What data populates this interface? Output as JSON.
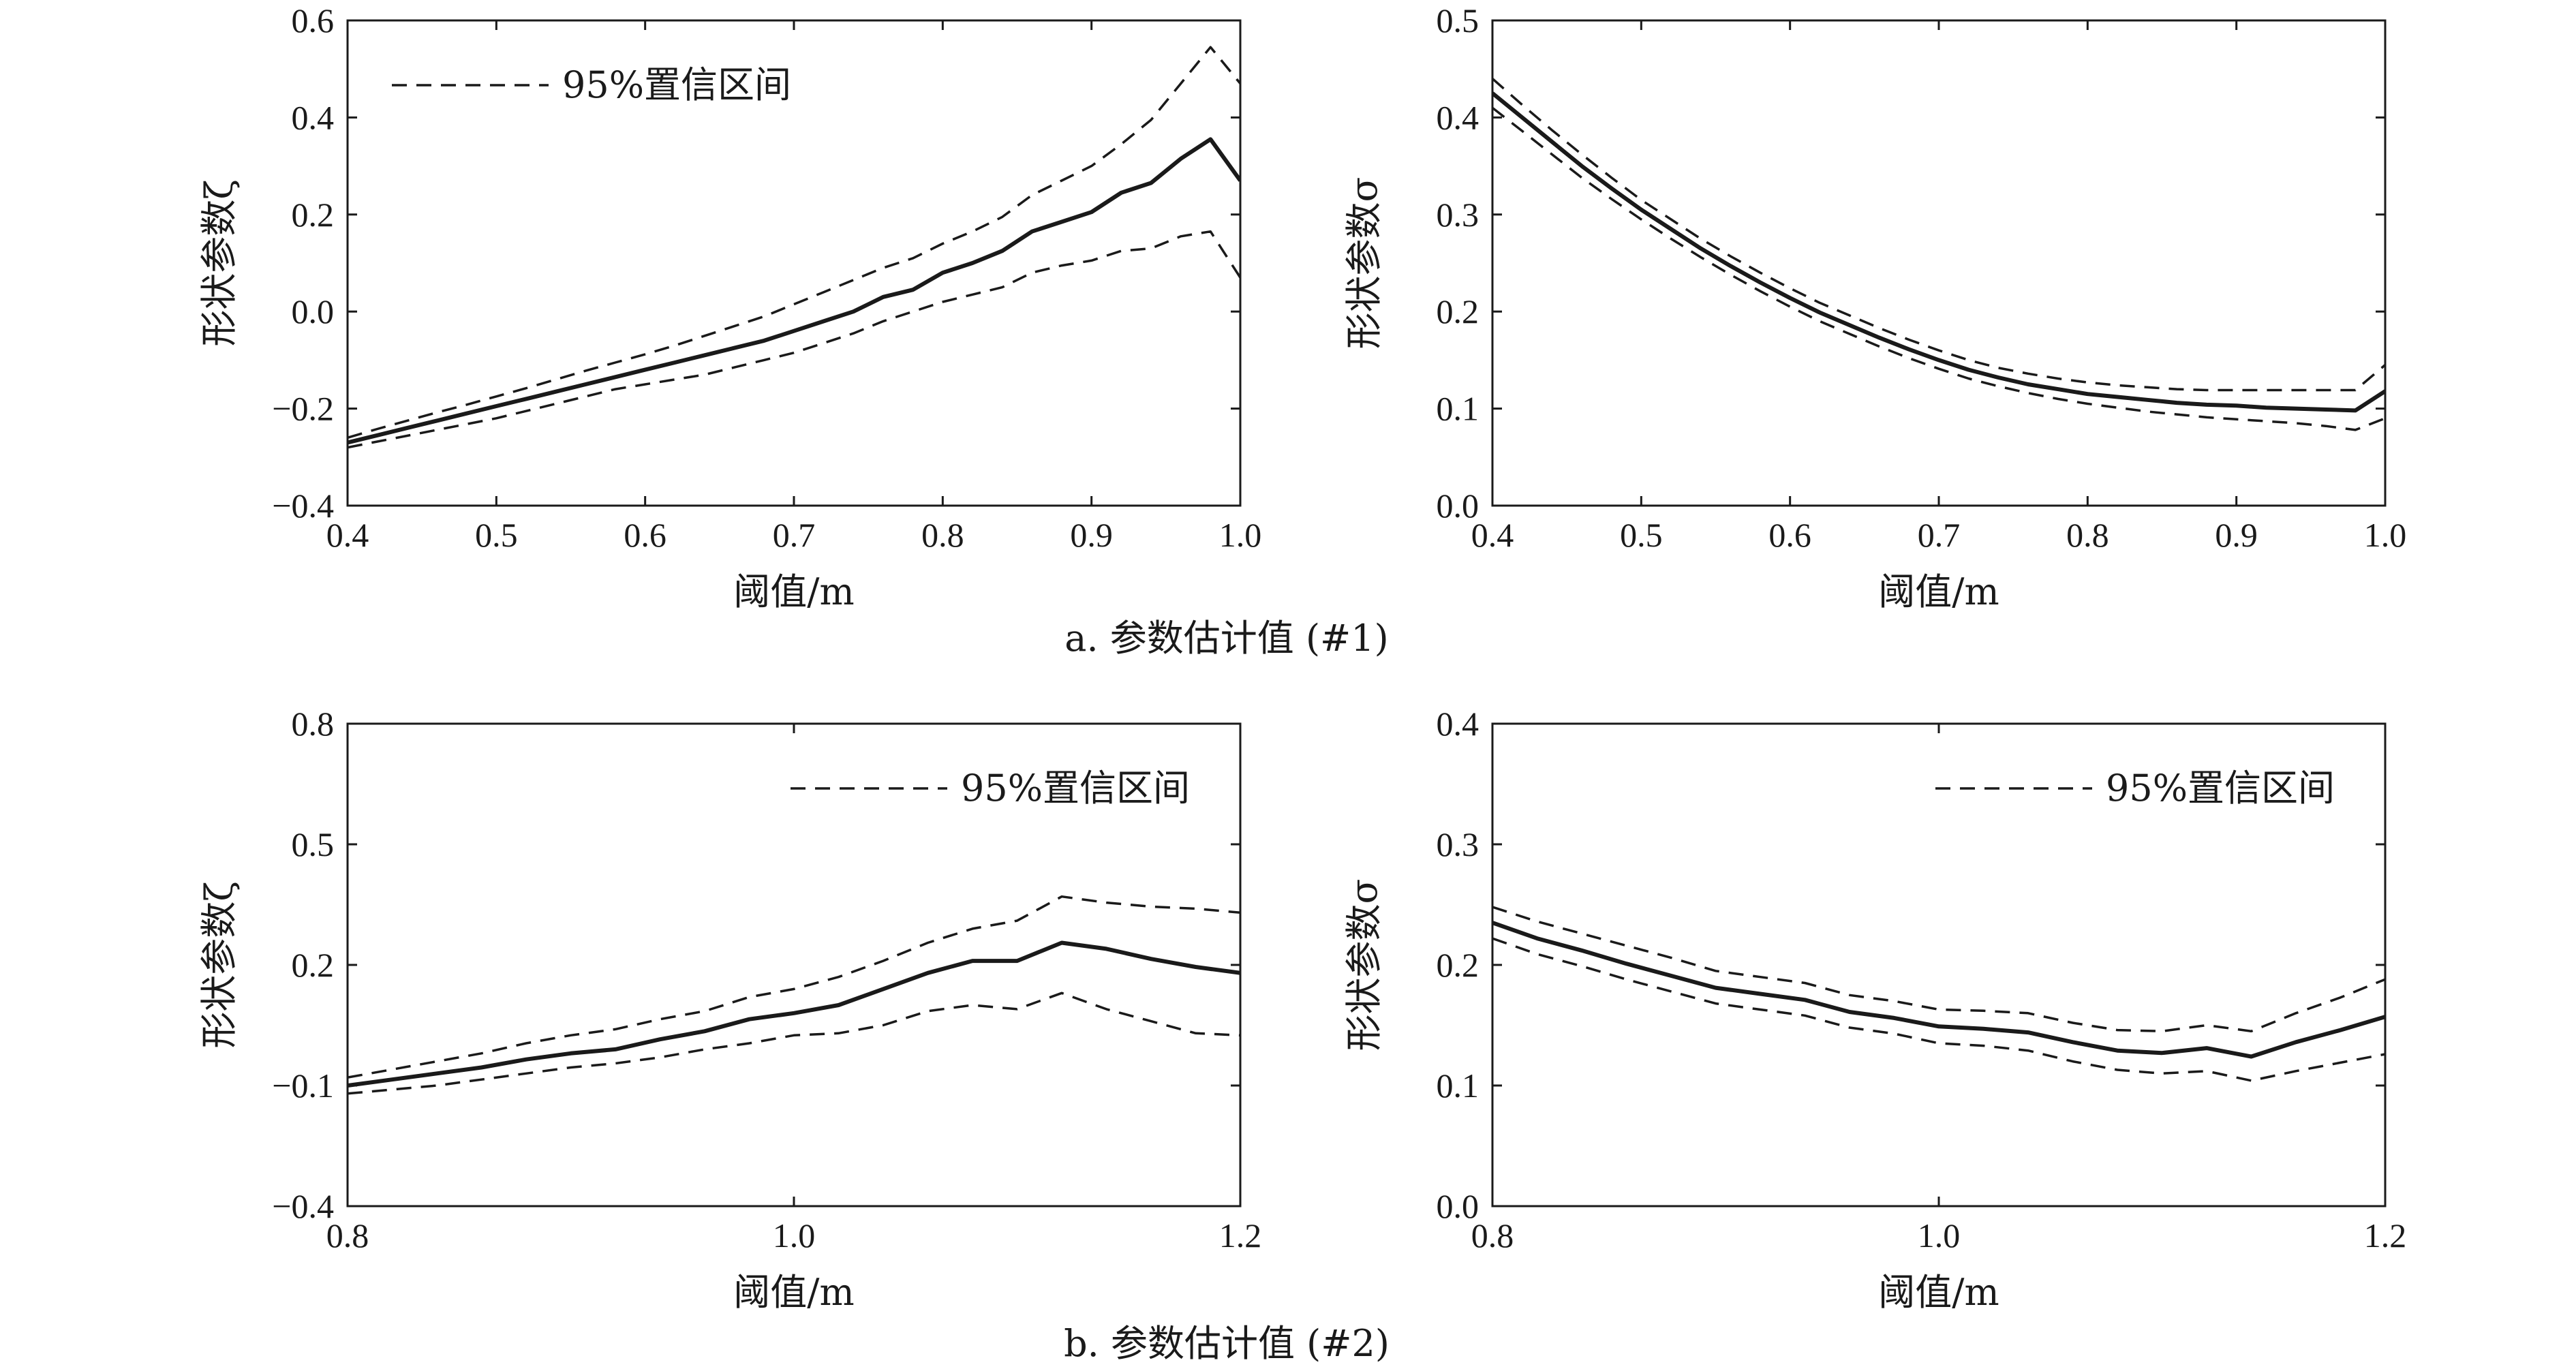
{
  "captions": {
    "row_a": "a. 参数估计值 (#1)",
    "row_b": "b. 参数估计值 (#2)"
  },
  "chart_data": [
    {
      "id": "a-left",
      "type": "line",
      "xlabel": "阈值/m",
      "ylabel": "形状参数ζ",
      "xlim": [
        0.4,
        1.0
      ],
      "ylim": [
        -0.4,
        0.6
      ],
      "xticks": [
        0.4,
        0.5,
        0.6,
        0.7,
        0.8,
        0.9,
        1.0
      ],
      "xtick_labels": [
        "0.4",
        "0.5",
        "0.6",
        "0.7",
        "0.8",
        "0.9",
        "1.0"
      ],
      "yticks": [
        -0.4,
        -0.2,
        0.0,
        0.2,
        0.4,
        0.6
      ],
      "ytick_labels": [
        "−0.4",
        "−0.2",
        "0.0",
        "0.2",
        "0.4",
        "0.6"
      ],
      "legend": {
        "label": "95%置信区间",
        "position": "top-left"
      },
      "x": [
        0.4,
        0.42,
        0.44,
        0.46,
        0.48,
        0.5,
        0.52,
        0.54,
        0.56,
        0.58,
        0.6,
        0.62,
        0.64,
        0.66,
        0.68,
        0.7,
        0.72,
        0.74,
        0.76,
        0.78,
        0.8,
        0.82,
        0.84,
        0.86,
        0.88,
        0.9,
        0.92,
        0.94,
        0.96,
        0.98,
        1.0
      ],
      "series": [
        {
          "role": "estimate",
          "style": "solid",
          "values": [
            -0.27,
            -0.255,
            -0.24,
            -0.225,
            -0.21,
            -0.195,
            -0.18,
            -0.165,
            -0.15,
            -0.135,
            -0.12,
            -0.105,
            -0.09,
            -0.075,
            -0.06,
            -0.04,
            -0.02,
            0.0,
            0.03,
            0.045,
            0.08,
            0.1,
            0.125,
            0.165,
            0.185,
            0.205,
            0.245,
            0.265,
            0.315,
            0.355,
            0.27
          ]
        },
        {
          "role": "upper",
          "style": "dashed",
          "name": "95%置信区间",
          "values": [
            -0.26,
            -0.242,
            -0.225,
            -0.208,
            -0.192,
            -0.175,
            -0.158,
            -0.14,
            -0.122,
            -0.105,
            -0.088,
            -0.07,
            -0.05,
            -0.03,
            -0.01,
            0.015,
            0.04,
            0.065,
            0.09,
            0.11,
            0.14,
            0.165,
            0.195,
            0.24,
            0.27,
            0.3,
            0.345,
            0.395,
            0.47,
            0.545,
            0.47
          ]
        },
        {
          "role": "lower",
          "style": "dashed",
          "values": [
            -0.28,
            -0.268,
            -0.256,
            -0.244,
            -0.232,
            -0.22,
            -0.205,
            -0.19,
            -0.175,
            -0.16,
            -0.15,
            -0.14,
            -0.13,
            -0.115,
            -0.1,
            -0.085,
            -0.065,
            -0.045,
            -0.02,
            0.0,
            0.02,
            0.035,
            0.05,
            0.08,
            0.095,
            0.105,
            0.125,
            0.13,
            0.155,
            0.165,
            0.07
          ]
        }
      ]
    },
    {
      "id": "a-right",
      "type": "line",
      "xlabel": "阈值/m",
      "ylabel": "形状参数σ",
      "xlim": [
        0.4,
        1.0
      ],
      "ylim": [
        0.0,
        0.5
      ],
      "xticks": [
        0.4,
        0.5,
        0.6,
        0.7,
        0.8,
        0.9,
        1.0
      ],
      "xtick_labels": [
        "0.4",
        "0.5",
        "0.6",
        "0.7",
        "0.8",
        "0.9",
        "1.0"
      ],
      "yticks": [
        0.0,
        0.1,
        0.2,
        0.3,
        0.4,
        0.5
      ],
      "ytick_labels": [
        "0.0",
        "0.1",
        "0.2",
        "0.3",
        "0.4",
        "0.5"
      ],
      "x": [
        0.4,
        0.42,
        0.44,
        0.46,
        0.48,
        0.5,
        0.52,
        0.54,
        0.56,
        0.58,
        0.6,
        0.62,
        0.64,
        0.66,
        0.68,
        0.7,
        0.72,
        0.74,
        0.76,
        0.78,
        0.8,
        0.82,
        0.84,
        0.86,
        0.88,
        0.9,
        0.92,
        0.94,
        0.96,
        0.98,
        1.0
      ],
      "series": [
        {
          "role": "estimate",
          "style": "solid",
          "values": [
            0.425,
            0.4,
            0.375,
            0.35,
            0.327,
            0.305,
            0.285,
            0.265,
            0.247,
            0.23,
            0.214,
            0.199,
            0.186,
            0.173,
            0.161,
            0.15,
            0.14,
            0.132,
            0.125,
            0.12,
            0.115,
            0.112,
            0.109,
            0.106,
            0.104,
            0.103,
            0.101,
            0.1,
            0.099,
            0.098,
            0.118
          ]
        },
        {
          "role": "upper",
          "style": "dashed",
          "values": [
            0.44,
            0.413,
            0.387,
            0.362,
            0.338,
            0.315,
            0.295,
            0.275,
            0.257,
            0.24,
            0.224,
            0.209,
            0.196,
            0.183,
            0.171,
            0.16,
            0.15,
            0.142,
            0.136,
            0.131,
            0.127,
            0.124,
            0.122,
            0.12,
            0.119,
            0.119,
            0.119,
            0.119,
            0.119,
            0.119,
            0.145
          ]
        },
        {
          "role": "lower",
          "style": "dashed",
          "values": [
            0.41,
            0.386,
            0.362,
            0.338,
            0.316,
            0.295,
            0.275,
            0.256,
            0.238,
            0.221,
            0.205,
            0.19,
            0.177,
            0.164,
            0.152,
            0.141,
            0.131,
            0.123,
            0.116,
            0.11,
            0.105,
            0.101,
            0.097,
            0.094,
            0.091,
            0.089,
            0.087,
            0.085,
            0.082,
            0.078,
            0.09
          ]
        }
      ]
    },
    {
      "id": "b-left",
      "type": "line",
      "xlabel": "阈值/m",
      "ylabel": "形状参数ζ",
      "xlim": [
        0.8,
        1.2
      ],
      "ylim": [
        -0.4,
        0.8
      ],
      "xticks": [
        0.8,
        1.0,
        1.2
      ],
      "xtick_labels": [
        "0.8",
        "1.0",
        "1.2"
      ],
      "yticks": [
        -0.4,
        -0.1,
        0.2,
        0.5,
        0.8
      ],
      "ytick_labels": [
        "−0.4",
        "−0.1",
        "0.2",
        "0.5",
        "0.8"
      ],
      "legend": {
        "label": "95%置信区间",
        "position": "top-right"
      },
      "x": [
        0.8,
        0.82,
        0.84,
        0.86,
        0.88,
        0.9,
        0.92,
        0.94,
        0.96,
        0.98,
        1.0,
        1.02,
        1.04,
        1.06,
        1.08,
        1.1,
        1.12,
        1.14,
        1.16,
        1.18,
        1.2
      ],
      "series": [
        {
          "role": "estimate",
          "style": "solid",
          "values": [
            -0.1,
            -0.085,
            -0.07,
            -0.055,
            -0.035,
            -0.02,
            -0.01,
            0.015,
            0.035,
            0.065,
            0.08,
            0.1,
            0.14,
            0.18,
            0.21,
            0.21,
            0.255,
            0.24,
            0.215,
            0.195,
            0.18
          ]
        },
        {
          "role": "upper",
          "style": "dashed",
          "name": "95%置信区间",
          "values": [
            -0.08,
            -0.06,
            -0.04,
            -0.02,
            0.005,
            0.025,
            0.04,
            0.065,
            0.085,
            0.12,
            0.14,
            0.17,
            0.21,
            0.255,
            0.29,
            0.31,
            0.37,
            0.355,
            0.345,
            0.34,
            0.33
          ]
        },
        {
          "role": "lower",
          "style": "dashed",
          "values": [
            -0.12,
            -0.11,
            -0.1,
            -0.085,
            -0.07,
            -0.055,
            -0.045,
            -0.03,
            -0.01,
            0.005,
            0.025,
            0.03,
            0.05,
            0.085,
            0.1,
            0.09,
            0.13,
            0.09,
            0.06,
            0.03,
            0.025
          ]
        }
      ]
    },
    {
      "id": "b-right",
      "type": "line",
      "xlabel": "阈值/m",
      "ylabel": "形状参数σ",
      "xlim": [
        0.8,
        1.2
      ],
      "ylim": [
        0.0,
        0.4
      ],
      "xticks": [
        0.8,
        1.0,
        1.2
      ],
      "xtick_labels": [
        "0.8",
        "1.0",
        "1.2"
      ],
      "yticks": [
        0.0,
        0.1,
        0.2,
        0.3,
        0.4
      ],
      "ytick_labels": [
        "0.0",
        "0.1",
        "0.2",
        "0.3",
        "0.4"
      ],
      "legend": {
        "label": "95%置信区间",
        "position": "top-right"
      },
      "x": [
        0.8,
        0.82,
        0.84,
        0.86,
        0.88,
        0.9,
        0.92,
        0.94,
        0.96,
        0.98,
        1.0,
        1.02,
        1.04,
        1.06,
        1.08,
        1.1,
        1.12,
        1.14,
        1.16,
        1.18,
        1.2
      ],
      "series": [
        {
          "role": "estimate",
          "style": "solid",
          "values": [
            0.235,
            0.222,
            0.212,
            0.201,
            0.191,
            0.181,
            0.176,
            0.171,
            0.161,
            0.156,
            0.149,
            0.147,
            0.144,
            0.136,
            0.129,
            0.127,
            0.131,
            0.124,
            0.136,
            0.146,
            0.157
          ]
        },
        {
          "role": "upper",
          "style": "dashed",
          "name": "95%置信区间",
          "values": [
            0.248,
            0.236,
            0.226,
            0.216,
            0.206,
            0.195,
            0.19,
            0.185,
            0.175,
            0.17,
            0.163,
            0.162,
            0.16,
            0.152,
            0.146,
            0.145,
            0.15,
            0.145,
            0.16,
            0.173,
            0.188
          ]
        },
        {
          "role": "lower",
          "style": "dashed",
          "values": [
            0.222,
            0.209,
            0.199,
            0.188,
            0.178,
            0.168,
            0.163,
            0.158,
            0.148,
            0.143,
            0.135,
            0.133,
            0.129,
            0.12,
            0.113,
            0.11,
            0.112,
            0.104,
            0.112,
            0.119,
            0.126
          ]
        }
      ]
    }
  ]
}
